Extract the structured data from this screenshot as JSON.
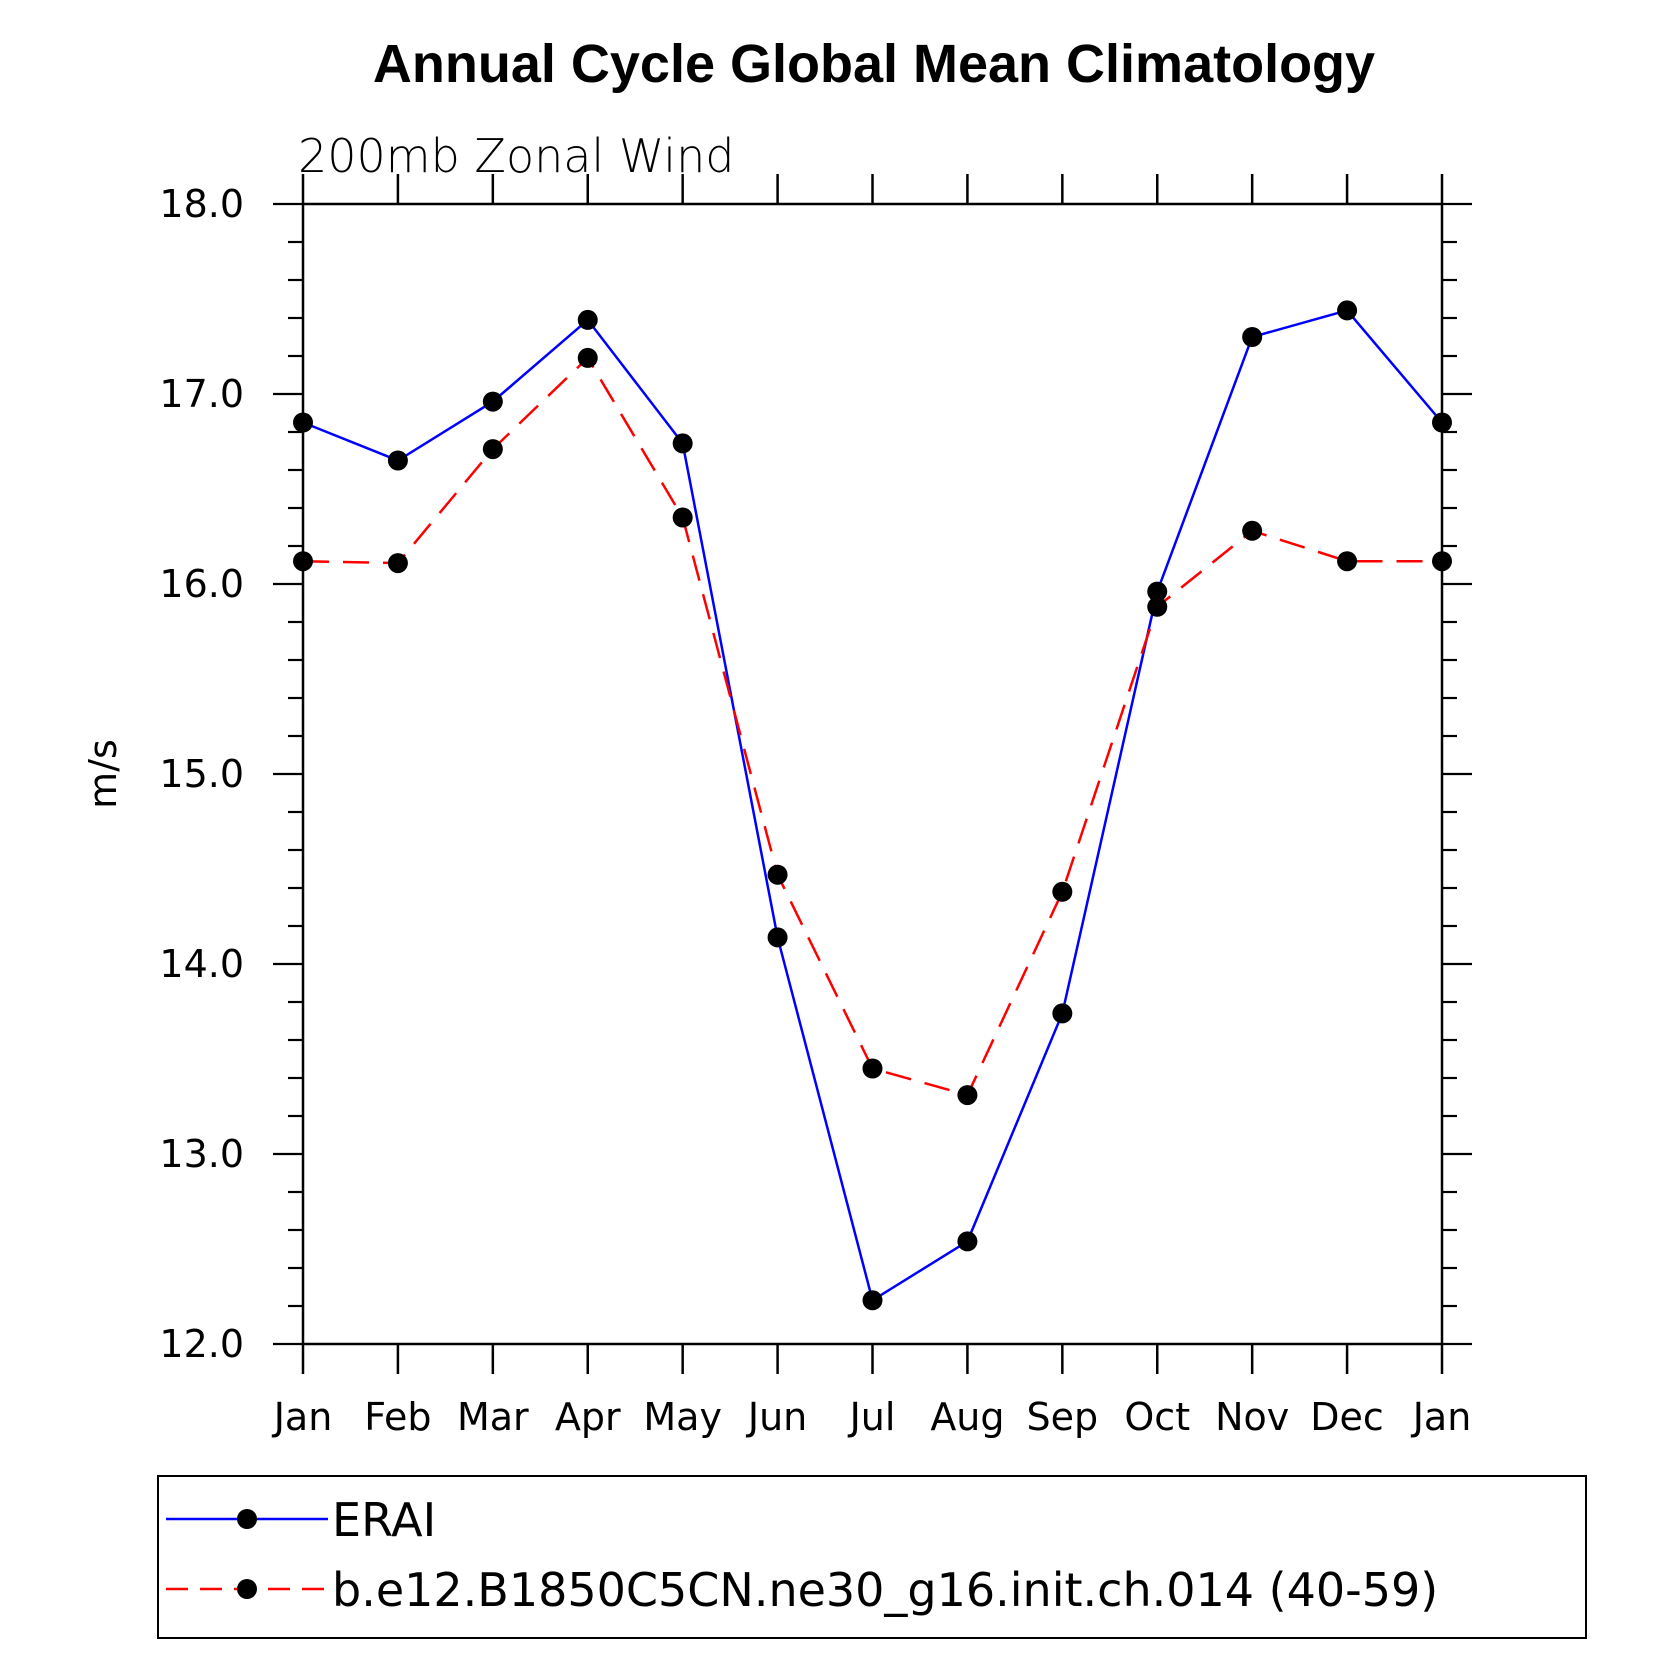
{
  "chart_data": {
    "type": "line",
    "title": "Annual Cycle Global Mean Climatology",
    "subtitle": "200mb Zonal Wind",
    "ylabel": "m/s",
    "xlabel": "",
    "categories": [
      "Jan",
      "Feb",
      "Mar",
      "Apr",
      "May",
      "Jun",
      "Jul",
      "Aug",
      "Sep",
      "Oct",
      "Nov",
      "Dec",
      "Jan"
    ],
    "ylim": [
      12.0,
      18.0
    ],
    "yticks": [
      "12.0",
      "13.0",
      "14.0",
      "15.0",
      "16.0",
      "17.0",
      "18.0"
    ],
    "grid": false,
    "legend_position": "bottom",
    "series": [
      {
        "name": "ERAI",
        "color": "#0000ff",
        "style": "solid",
        "values": [
          16.85,
          16.65,
          16.96,
          17.39,
          16.74,
          14.14,
          12.23,
          12.54,
          13.74,
          15.96,
          17.3,
          17.44,
          16.85
        ]
      },
      {
        "name": "b.e12.B1850C5CN.ne30_g16.init.ch.014 (40-59)",
        "color": "#ff0000",
        "style": "dashed",
        "values": [
          16.12,
          16.11,
          16.71,
          17.19,
          16.35,
          14.47,
          13.45,
          13.31,
          14.38,
          15.88,
          16.28,
          16.12,
          16.12
        ]
      }
    ]
  }
}
